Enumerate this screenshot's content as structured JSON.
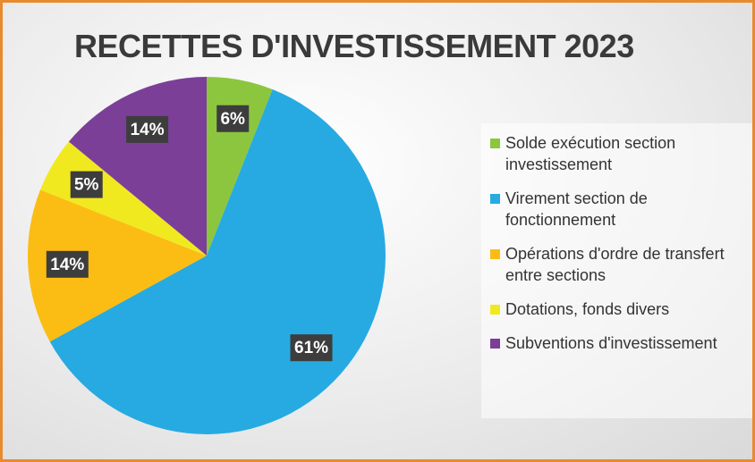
{
  "chart_data": {
    "type": "pie",
    "title": "RECETTES D'INVESTISSEMENT 2023",
    "categories": [
      "Solde exécution section investissement",
      "Virement section de fonctionnement",
      "Opérations d'ordre de transfert entre sections",
      "Dotations, fonds divers",
      "Subventions d'investissement"
    ],
    "values": [
      6,
      61,
      14,
      5,
      14
    ],
    "value_labels": [
      "6%",
      "61%",
      "14%",
      "5%",
      "14%"
    ],
    "colors": [
      "#8cc63e",
      "#27aae1",
      "#fbbd13",
      "#f1e91f",
      "#7c3f98"
    ],
    "legend": "right"
  }
}
